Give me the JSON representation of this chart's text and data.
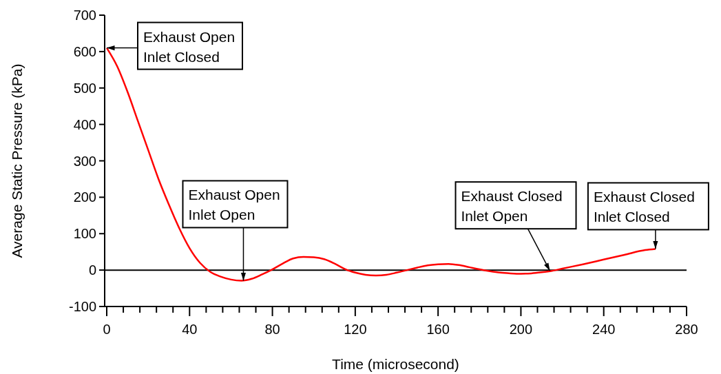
{
  "chart_data": {
    "type": "line",
    "xlabel": "Time (microsecond)",
    "ylabel": "Average Static Pressure (kPa)",
    "x": [
      0,
      5,
      10,
      15,
      20,
      25,
      30,
      35,
      40,
      45,
      50,
      55,
      60,
      65,
      70,
      75,
      80,
      85,
      90,
      95,
      100,
      105,
      110,
      115,
      120,
      125,
      130,
      135,
      140,
      145,
      150,
      155,
      160,
      165,
      170,
      175,
      180,
      185,
      190,
      195,
      200,
      205,
      210,
      215,
      220,
      230,
      240,
      250,
      260,
      265
    ],
    "series": [
      {
        "color": "#ff0000",
        "values": [
          610,
          560,
          490,
          410,
          330,
          250,
          180,
          115,
          60,
          20,
          -5,
          -18,
          -26,
          -29,
          -24,
          -12,
          2,
          18,
          32,
          36,
          35,
          30,
          18,
          3,
          -7,
          -13,
          -15,
          -13,
          -7,
          0,
          7,
          13,
          16,
          17,
          14,
          8,
          2,
          -3,
          -7,
          -9,
          -10,
          -9,
          -6,
          -2,
          4,
          16,
          29,
          42,
          55,
          58
        ]
      }
    ],
    "xlim": [
      -1,
      280
    ],
    "ylim": [
      -100,
      700
    ],
    "xticks": [
      0,
      {
        "value": 8,
        "label": null
      },
      {
        "value": 16,
        "label": null
      },
      {
        "value": 24,
        "label": null
      },
      {
        "value": 32,
        "label": null
      },
      40,
      {
        "value": 48,
        "label": null
      },
      {
        "value": 56,
        "label": null
      },
      {
        "value": 64,
        "label": null
      },
      {
        "value": 72,
        "label": null
      },
      80,
      {
        "value": 88,
        "label": null
      },
      {
        "value": 96,
        "label": null
      },
      {
        "value": 104,
        "label": null
      },
      {
        "value": 112,
        "label": null
      },
      120,
      {
        "value": 128,
        "label": null
      },
      {
        "value": 136,
        "label": null
      },
      {
        "value": 144,
        "label": null
      },
      {
        "value": 152,
        "label": null
      },
      160,
      {
        "value": 168,
        "label": null
      },
      {
        "value": 176,
        "label": null
      },
      {
        "value": 184,
        "label": null
      },
      {
        "value": 192,
        "label": null
      },
      200,
      {
        "value": 208,
        "label": null
      },
      {
        "value": 216,
        "label": null
      },
      {
        "value": 224,
        "label": null
      },
      {
        "value": 232,
        "label": null
      },
      240,
      {
        "value": 248,
        "label": null
      },
      {
        "value": 256,
        "label": null
      },
      {
        "value": 264,
        "label": null
      },
      {
        "value": 272,
        "label": null
      },
      280
    ],
    "yticks": [
      -100,
      0,
      100,
      200,
      300,
      400,
      500,
      600,
      700
    ],
    "ref_lines": [
      {
        "axis": "y",
        "value": 0,
        "color": "#000000"
      }
    ],
    "annotations": [
      {
        "text": "Exhaust Open\nInlet Closed",
        "x": 0,
        "y": 610
      },
      {
        "text": "Exhaust Open\nInlet Open",
        "x": 66,
        "y": -29
      },
      {
        "text": "Exhaust Closed\nInlet Open",
        "x": 214,
        "y": -2
      },
      {
        "text": "Exhaust Closed\nInlet Closed",
        "x": 265,
        "y": 58
      }
    ],
    "line_style": "solid"
  }
}
